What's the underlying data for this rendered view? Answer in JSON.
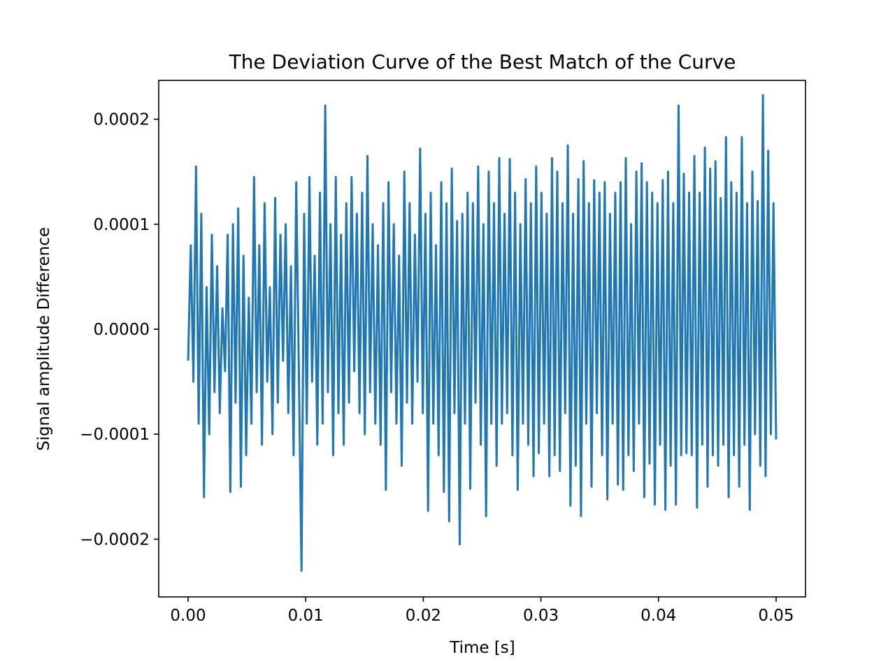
{
  "chart_data": {
    "type": "line",
    "title": "The Deviation Curve of the Best Match of the Curve",
    "xlabel": "Time [s]",
    "ylabel": "Signal amplitude Difference",
    "xlim": [
      -0.0025,
      0.0525
    ],
    "ylim": [
      -0.000255,
      0.000237
    ],
    "x_ticks": [
      0.0,
      0.01,
      0.02,
      0.03,
      0.04,
      0.05
    ],
    "x_tick_labels": [
      "0.00",
      "0.01",
      "0.02",
      "0.03",
      "0.04",
      "0.05"
    ],
    "y_ticks": [
      -0.0002,
      -0.0001,
      0.0,
      0.0001,
      0.0002
    ],
    "y_tick_labels": [
      "−0.0002",
      "−0.0001",
      "0.0000",
      "0.0001",
      "0.0002"
    ],
    "grid": false,
    "legend": "none",
    "series": [
      {
        "color": "#1f77b4",
        "x_start": 0.0,
        "x_end": 0.05,
        "values": [
          -3e-05,
          8e-05,
          -5e-05,
          0.000155,
          -9e-05,
          0.00011,
          -0.00016,
          4e-05,
          -0.0001,
          9e-05,
          -6e-05,
          6e-05,
          -8e-05,
          2e-05,
          -4e-05,
          9e-05,
          -0.000155,
          0.0001,
          -7e-05,
          0.000115,
          -0.00015,
          7e-05,
          -0.00012,
          3e-05,
          -9e-05,
          0.000145,
          -6e-05,
          8e-05,
          -0.00011,
          0.00012,
          -5e-05,
          4e-05,
          -0.0001,
          0.000125,
          -7e-05,
          9e-05,
          -3e-05,
          0.0001,
          -8e-05,
          6e-05,
          -0.00012,
          0.00014,
          -4e-05,
          -0.00023,
          0.00011,
          -9e-05,
          0.000145,
          -5e-05,
          7e-05,
          -0.00011,
          0.00013,
          -9e-05,
          0.000213,
          -6e-05,
          0.0001,
          -0.00012,
          0.000145,
          -8e-05,
          9e-05,
          -0.00011,
          0.00012,
          -7e-05,
          0.000145,
          -4e-05,
          0.00011,
          -8e-05,
          0.00013,
          -0.0001,
          0.000165,
          -6e-05,
          0.0001,
          -9e-05,
          8e-05,
          -0.00011,
          0.00012,
          -0.000153,
          0.00014,
          -6e-05,
          0.0001,
          -9e-05,
          7e-05,
          -0.00013,
          0.00015,
          -7e-05,
          0.00012,
          -9e-05,
          9e-05,
          -5e-05,
          0.000172,
          -8e-05,
          0.00011,
          -0.000173,
          0.00013,
          -9e-05,
          8e-05,
          -0.00012,
          0.00014,
          -0.000155,
          0.00012,
          -0.000183,
          0.000153,
          -8e-05,
          0.000103,
          -0.000205,
          0.00011,
          -9e-05,
          0.00013,
          -0.000152,
          0.00012,
          -7e-05,
          0.000155,
          -0.00011,
          0.0001,
          -0.000178,
          0.00015,
          -9e-05,
          0.00012,
          -0.00013,
          0.000163,
          -9e-05,
          0.00011,
          -8e-05,
          0.000162,
          -0.00012,
          0.00013,
          -0.000153,
          0.0001,
          -9e-05,
          0.000143,
          -0.00011,
          0.00012,
          -0.00014,
          0.000155,
          -0.000118,
          0.00013,
          -9e-05,
          0.00011,
          -0.00014,
          0.000163,
          -0.00012,
          0.00015,
          -0.000135,
          0.00012,
          -8e-05,
          0.000175,
          -0.000168,
          0.00011,
          -0.00013,
          0.000143,
          -0.000178,
          0.00016,
          -9e-05,
          0.00012,
          -0.00015,
          0.000142,
          -8e-05,
          0.00013,
          -0.00012,
          0.00014,
          -0.000162,
          0.00011,
          -9e-05,
          0.00013,
          -0.000148,
          0.00014,
          -0.000153,
          0.000163,
          -0.00012,
          0.0001,
          -0.000135,
          0.00015,
          -9e-05,
          0.000158,
          -0.00016,
          0.00014,
          -0.000128,
          0.00013,
          -0.000167,
          0.00012,
          -0.00011,
          0.000142,
          -0.000172,
          0.00015,
          -0.00013,
          0.00012,
          -0.000167,
          0.000213,
          -0.00012,
          0.000148,
          -0.000118,
          0.00013,
          -0.00012,
          0.000165,
          -0.00017,
          0.00013,
          -0.00011,
          0.000173,
          -0.00015,
          0.000153,
          -0.00012,
          0.00016,
          -0.00013,
          0.000125,
          -0.00011,
          0.000183,
          -0.00016,
          0.00014,
          -0.00012,
          0.00013,
          -0.00015,
          0.000183,
          -0.00011,
          0.00012,
          -0.000172,
          0.00015,
          -0.0001,
          0.000122,
          -0.00013,
          0.000223,
          -0.00014,
          0.00017,
          -0.0001,
          0.00012,
          -0.000105
        ]
      }
    ]
  }
}
